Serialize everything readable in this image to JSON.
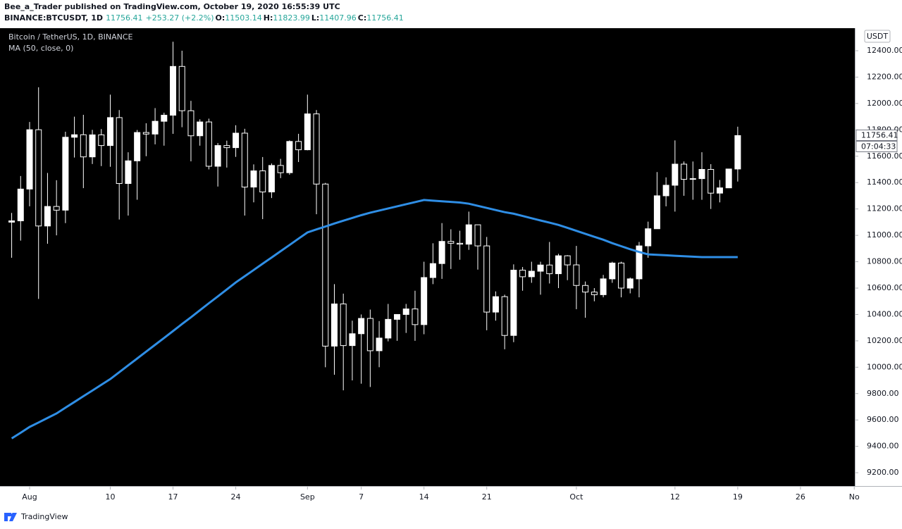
{
  "header": {
    "publisher": "Bee_a_Trader published on TradingView.com, October 19, 2020 16:55:39 UTC",
    "symbol": "BINANCE:BTCUSDT, 1D",
    "change": "+253.27 (+2.2%)",
    "ohlc_labels": [
      "O:",
      "H:",
      "L:",
      "C:"
    ]
  },
  "currency": "USDT",
  "countdown": "07:04:33",
  "brand": "TradingView",
  "chart_data": {
    "type": "candlestick",
    "title": "Bitcoin / TetherUS, 1D, BINANCE",
    "up_color": "#ffffff",
    "down_color": "#000000",
    "grid": false,
    "x": [
      "2020-07-30",
      "2020-07-31",
      "2020-08-01",
      "2020-08-02",
      "2020-08-03",
      "2020-08-04",
      "2020-08-05",
      "2020-08-06",
      "2020-08-07",
      "2020-08-08",
      "2020-08-09",
      "2020-08-10",
      "2020-08-11",
      "2020-08-12",
      "2020-08-13",
      "2020-08-14",
      "2020-08-15",
      "2020-08-16",
      "2020-08-17",
      "2020-08-18",
      "2020-08-19",
      "2020-08-20",
      "2020-08-21",
      "2020-08-22",
      "2020-08-23",
      "2020-08-24",
      "2020-08-25",
      "2020-08-26",
      "2020-08-27",
      "2020-08-28",
      "2020-08-29",
      "2020-08-30",
      "2020-08-31",
      "2020-09-01",
      "2020-09-02",
      "2020-09-03",
      "2020-09-04",
      "2020-09-05",
      "2020-09-06",
      "2020-09-07",
      "2020-09-08",
      "2020-09-09",
      "2020-09-10",
      "2020-09-11",
      "2020-09-12",
      "2020-09-13",
      "2020-09-14",
      "2020-09-15",
      "2020-09-16",
      "2020-09-17",
      "2020-09-18",
      "2020-09-19",
      "2020-09-20",
      "2020-09-21",
      "2020-09-22",
      "2020-09-23",
      "2020-09-24",
      "2020-09-25",
      "2020-09-26",
      "2020-09-27",
      "2020-09-28",
      "2020-09-29",
      "2020-09-30",
      "2020-10-01",
      "2020-10-02",
      "2020-10-03",
      "2020-10-04",
      "2020-10-05",
      "2020-10-06",
      "2020-10-07",
      "2020-10-08",
      "2020-10-09",
      "2020-10-10",
      "2020-10-11",
      "2020-10-12",
      "2020-10-13",
      "2020-10-14",
      "2020-10-15",
      "2020-10-16",
      "2020-10-17",
      "2020-10-18",
      "2020-10-19"
    ],
    "open": [
      11100,
      11110,
      11351,
      11801,
      11071,
      11219,
      11191,
      11744,
      11763,
      11595,
      11762,
      11681,
      11893,
      11393,
      11565,
      11780,
      11768,
      11865,
      11911,
      12281,
      11945,
      11755,
      11860,
      11524,
      11681,
      11665,
      11775,
      11366,
      11489,
      11329,
      11530,
      11475,
      11712,
      11649,
      11921,
      11389,
      10160,
      10480,
      10164,
      10254,
      10370,
      10125,
      10221,
      10363,
      10400,
      10442,
      10323,
      10680,
      10786,
      10954,
      10940,
      10933,
      11080,
      10920,
      10418,
      10535,
      10241,
      10736,
      10686,
      10728,
      10775,
      10709,
      10845,
      10776,
      10620,
      10570,
      10550,
      10670,
      10790,
      10600,
      10670,
      10920,
      11050,
      11300,
      11380,
      11540,
      11425,
      11430,
      11500,
      11320,
      11360,
      11503.14
    ],
    "high": [
      11170,
      11450,
      11860,
      12123,
      11473,
      11418,
      11786,
      11900,
      11914,
      11800,
      11806,
      12067,
      11950,
      11630,
      11799,
      11850,
      11965,
      11930,
      12468,
      12400,
      12020,
      11880,
      11885,
      11700,
      11718,
      11835,
      11808,
      11538,
      11594,
      11545,
      11580,
      11720,
      11770,
      12067,
      11950,
      11398,
      10630,
      10558,
      10353,
      10400,
      10437,
      10350,
      10480,
      10400,
      10480,
      10580,
      10800,
      10940,
      11093,
      11046,
      11035,
      11180,
      11080,
      10988,
      10575,
      10550,
      10780,
      10760,
      10800,
      10800,
      10950,
      10860,
      10850,
      10920,
      10650,
      10600,
      10700,
      10800,
      10800,
      10680,
      10950,
      11104,
      11480,
      11440,
      11720,
      11560,
      11560,
      11630,
      11540,
      11420,
      11500,
      11823.99
    ],
    "low": [
      10830,
      10960,
      11220,
      10518,
      10936,
      11000,
      11093,
      11590,
      11358,
      11541,
      11525,
      11520,
      11120,
      11150,
      11270,
      11600,
      11690,
      11680,
      11770,
      11820,
      11561,
      11680,
      11500,
      11370,
      11514,
      11595,
      11150,
      11250,
      11123,
      11283,
      11434,
      11460,
      11556,
      11645,
      11160,
      10000,
      9943,
      9825,
      9900,
      9875,
      9850,
      10000,
      10196,
      10200,
      10260,
      10200,
      10250,
      10630,
      10670,
      10745,
      10815,
      10890,
      10740,
      10280,
      10353,
      10136,
      10190,
      10580,
      10640,
      10550,
      10635,
      10600,
      10660,
      10440,
      10375,
      10500,
      10530,
      10640,
      10530,
      10560,
      10530,
      10830,
      11050,
      11220,
      11180,
      11300,
      11270,
      11270,
      11200,
      11250,
      11360,
      11407.96
    ],
    "close": [
      11110,
      11351,
      11801,
      11071,
      11219,
      11191,
      11744,
      11763,
      11595,
      11762,
      11681,
      11893,
      11393,
      11565,
      11780,
      11768,
      11865,
      11911,
      12281,
      11945,
      11755,
      11860,
      11524,
      11681,
      11665,
      11775,
      11366,
      11489,
      11329,
      11530,
      11475,
      11712,
      11649,
      11921,
      11389,
      10160,
      10480,
      10164,
      10254,
      10370,
      10125,
      10221,
      10363,
      10400,
      10442,
      10323,
      10680,
      10786,
      10954,
      10940,
      10933,
      11080,
      10920,
      10418,
      10535,
      10241,
      10736,
      10686,
      10728,
      10775,
      10709,
      10845,
      10776,
      10620,
      10570,
      10550,
      10670,
      10790,
      10600,
      10670,
      10920,
      11050,
      11300,
      11380,
      11540,
      11425,
      11430,
      11500,
      11320,
      11360,
      11503.14,
      11756.41
    ],
    "ma": {
      "name": "MA (50, close, 0)",
      "color": "#2f8ee5",
      "values": [
        9460,
        9503,
        9547,
        9581,
        9615,
        9649,
        9693,
        9736,
        9780,
        9823,
        9867,
        9910,
        9962,
        10014,
        10066,
        10118,
        10170,
        10222,
        10274,
        10327,
        10379,
        10432,
        10485,
        10537,
        10590,
        10643,
        10690,
        10737,
        10785,
        10832,
        10880,
        10927,
        10975,
        11022,
        11045,
        11067,
        11090,
        11111,
        11132,
        11153,
        11172,
        11188,
        11204,
        11220,
        11236,
        11252,
        11268,
        11263,
        11258,
        11254,
        11249,
        11240,
        11224,
        11208,
        11192,
        11176,
        11164,
        11147,
        11130,
        11113,
        11096,
        11079,
        11057,
        11034,
        11012,
        10989,
        10967,
        10941,
        10918,
        10895,
        10874,
        10856,
        10852,
        10849,
        10845,
        10842,
        10838,
        10835,
        10835,
        10835,
        10835,
        10835
      ]
    },
    "ylim": [
      9099,
      12571
    ],
    "yticks": [
      {
        "value": 9200,
        "label": "9200.00"
      },
      {
        "value": 9400,
        "label": "9400.00"
      },
      {
        "value": 9600,
        "label": "9600.00"
      },
      {
        "value": 9800,
        "label": "9800.00"
      },
      {
        "value": 10000,
        "label": "10000.00"
      },
      {
        "value": 10200,
        "label": "10200.00"
      },
      {
        "value": 10400,
        "label": "10400.00"
      },
      {
        "value": 10600,
        "label": "10600.00"
      },
      {
        "value": 10800,
        "label": "10800.00"
      },
      {
        "value": 11000,
        "label": "11000.00"
      },
      {
        "value": 11200,
        "label": "11200.00"
      },
      {
        "value": 11400,
        "label": "11400.00"
      },
      {
        "value": 11600,
        "label": "11600.00"
      },
      {
        "value": 11800,
        "label": "11800.00"
      },
      {
        "value": 12000,
        "label": "12000.00"
      },
      {
        "value": 12200,
        "label": "12200.00"
      },
      {
        "value": 12400,
        "label": "12400.00"
      }
    ],
    "xticks": [
      {
        "value": "2020-08-01",
        "label": "Aug"
      },
      {
        "value": "2020-08-10",
        "label": "10"
      },
      {
        "value": "2020-08-17",
        "label": "17"
      },
      {
        "value": "2020-08-24",
        "label": "24"
      },
      {
        "value": "2020-09-01",
        "label": "Sep"
      },
      {
        "value": "2020-09-07",
        "label": "7"
      },
      {
        "value": "2020-09-14",
        "label": "14"
      },
      {
        "value": "2020-09-21",
        "label": "21"
      },
      {
        "value": "2020-10-01",
        "label": "Oct"
      },
      {
        "value": "2020-10-12",
        "label": "12"
      },
      {
        "value": "2020-10-19",
        "label": "19"
      },
      {
        "value": "2020-10-26",
        "label": "26"
      },
      {
        "value": "2020-11-01",
        "label": "No"
      }
    ]
  }
}
